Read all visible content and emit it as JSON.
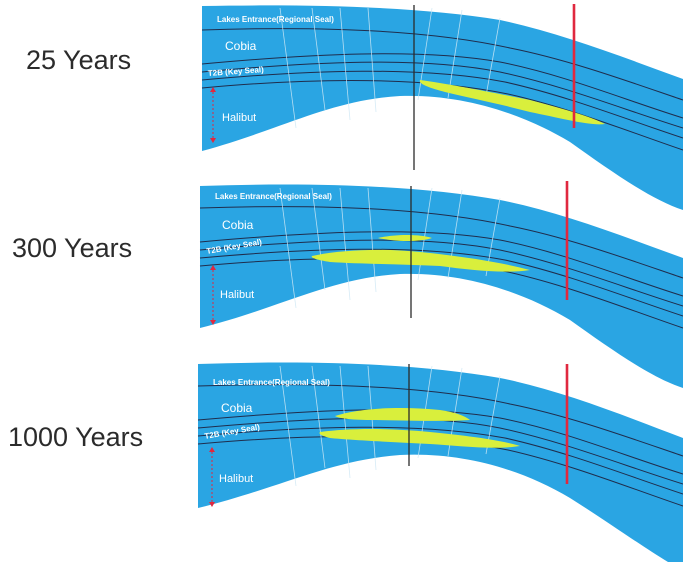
{
  "time_labels": [
    "25 Years",
    "300 Years",
    "1000 Years"
  ],
  "formation_labels": {
    "regional_seal": "Lakes Entrance(Regional Seal)",
    "cobia": "Cobia",
    "key_seal": "T2B (Key Seal)",
    "halibut": "Halibut"
  },
  "colors": {
    "formation_fill": "#2aa5e3",
    "horizon_line": "#1f2d4d",
    "fault_line": "#cfe8f5",
    "co2_plume": "#d9ef3c",
    "injection_well": "#2b2b2b",
    "monitor_well": "#e0283f"
  }
}
